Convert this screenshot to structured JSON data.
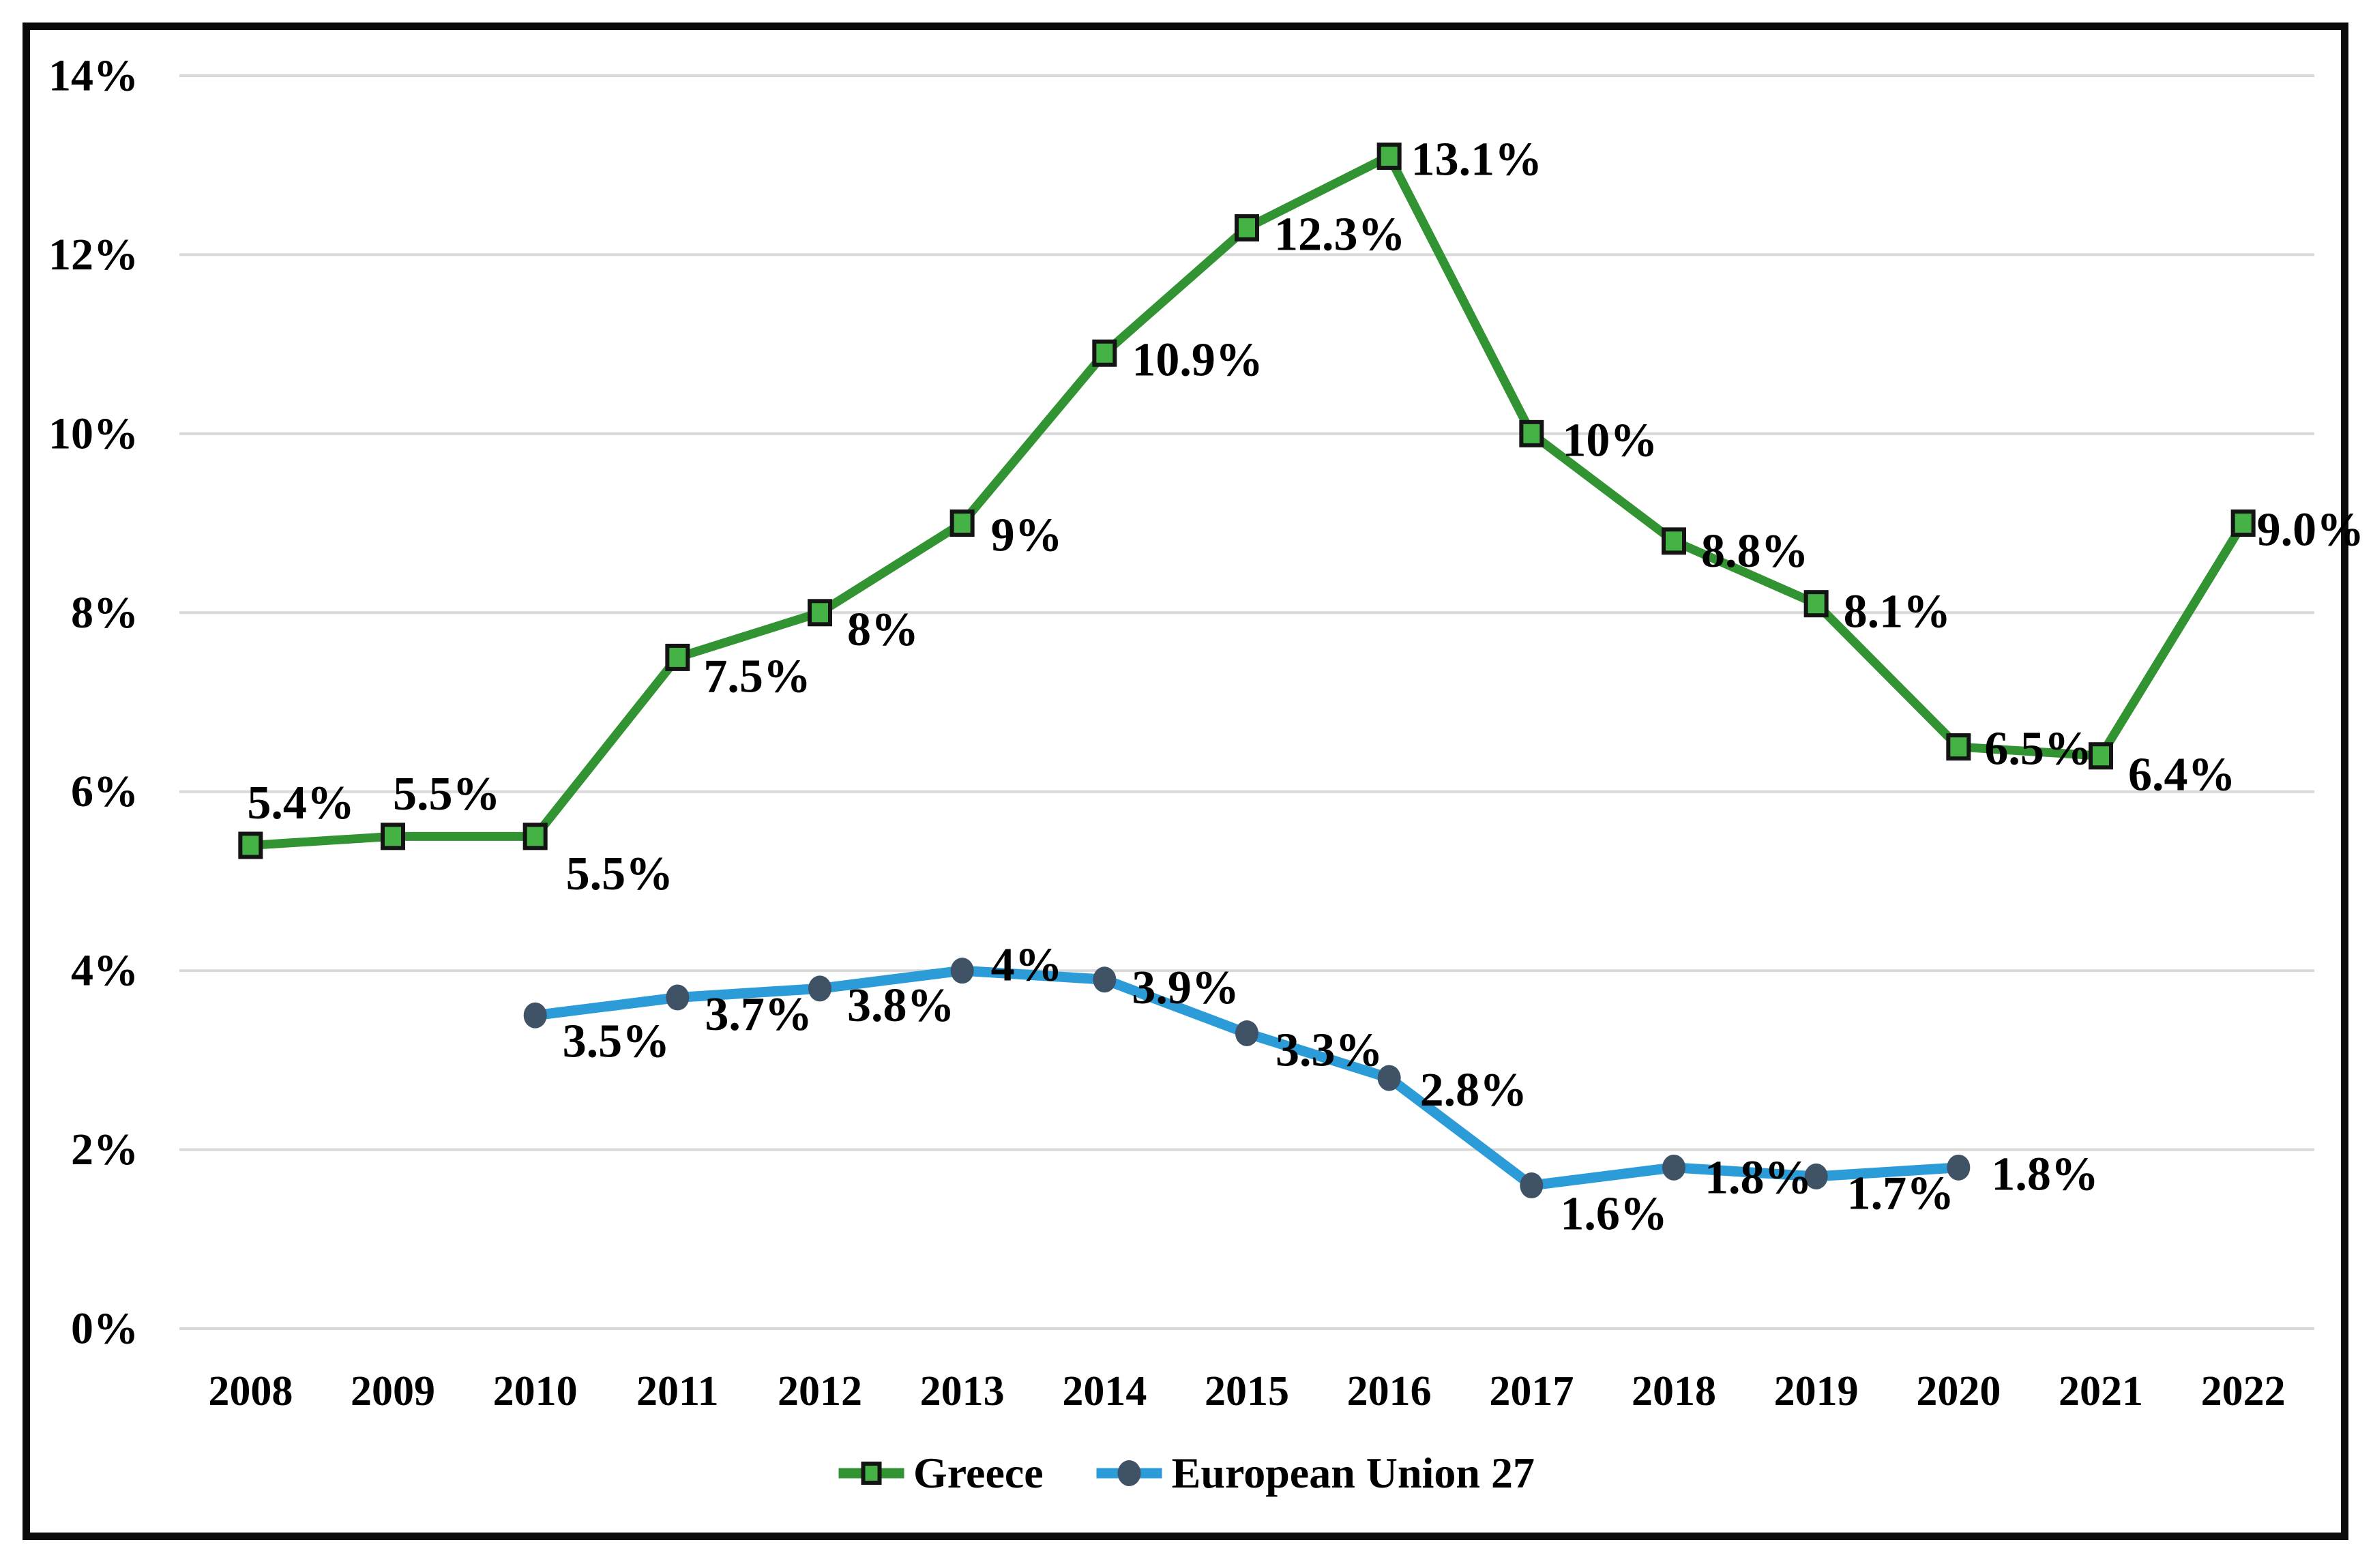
{
  "chart_data": {
    "type": "line",
    "title": "",
    "x": [
      "2008",
      "2009",
      "2010",
      "2011",
      "2012",
      "2013",
      "2014",
      "2015",
      "2016",
      "2017",
      "2018",
      "2019",
      "2020",
      "2021",
      "2022"
    ],
    "y_axis": {
      "min": 0,
      "max": 14,
      "step": 2,
      "tick_labels": [
        "0%",
        "2%",
        "4%",
        "6%",
        "8%",
        "10%",
        "12%",
        "14%"
      ]
    },
    "grid": true,
    "legend_position": "bottom-center",
    "gridline_color": "#D9D9D9",
    "frame_border_color": "#0A0A0A",
    "text_color": "#000000",
    "series": [
      {
        "name": "Greece",
        "marker": "square",
        "color": "#319331",
        "marker_fill": "#44B244",
        "marker_stroke": "#141414",
        "start_index": 0,
        "values": [
          5.4,
          5.5,
          5.5,
          7.5,
          8,
          9,
          10.9,
          12.3,
          13.1,
          10,
          8.8,
          8.1,
          6.5,
          6.4,
          9.0
        ],
        "data_labels": [
          "5.4%",
          "5.5%",
          "5.5%",
          "7.5%",
          "8%",
          "9%",
          "10.9%",
          "12.3%",
          "13.1%",
          "10%",
          "8.8%",
          "8.1%",
          "6.5%",
          "6.4%",
          "9.0%"
        ],
        "label_offsets": [
          [
            -5,
            -62
          ],
          [
            0,
            -62
          ],
          [
            45,
            55
          ],
          [
            38,
            28
          ],
          [
            40,
            25
          ],
          [
            42,
            18
          ],
          [
            40,
            10
          ],
          [
            40,
            10
          ],
          [
            32,
            5
          ],
          [
            45,
            10
          ],
          [
            40,
            15
          ],
          [
            40,
            12
          ],
          [
            38,
            3
          ],
          [
            40,
            28
          ],
          [
            20,
            10
          ]
        ]
      },
      {
        "name": "European Union 27",
        "marker": "circle",
        "color": "#2B9CD8",
        "marker_fill": "#3F5266",
        "marker_stroke": "none",
        "start_index": 2,
        "values": [
          3.5,
          3.7,
          3.8,
          4,
          3.9,
          3.3,
          2.8,
          1.6,
          1.8,
          1.7,
          1.8
        ],
        "data_labels": [
          "3.5%",
          "3.7%",
          "3.8%",
          "4%",
          "3.9%",
          "3.3%",
          "2.8%",
          "1.6%",
          "1.8%",
          "1.7%",
          "1.8%"
        ],
        "label_offsets": [
          [
            40,
            38
          ],
          [
            40,
            25
          ],
          [
            40,
            25
          ],
          [
            42,
            -8
          ],
          [
            40,
            12
          ],
          [
            42,
            25
          ],
          [
            45,
            18
          ],
          [
            42,
            42
          ],
          [
            45,
            15
          ],
          [
            45,
            25
          ],
          [
            48,
            10
          ]
        ]
      }
    ]
  }
}
